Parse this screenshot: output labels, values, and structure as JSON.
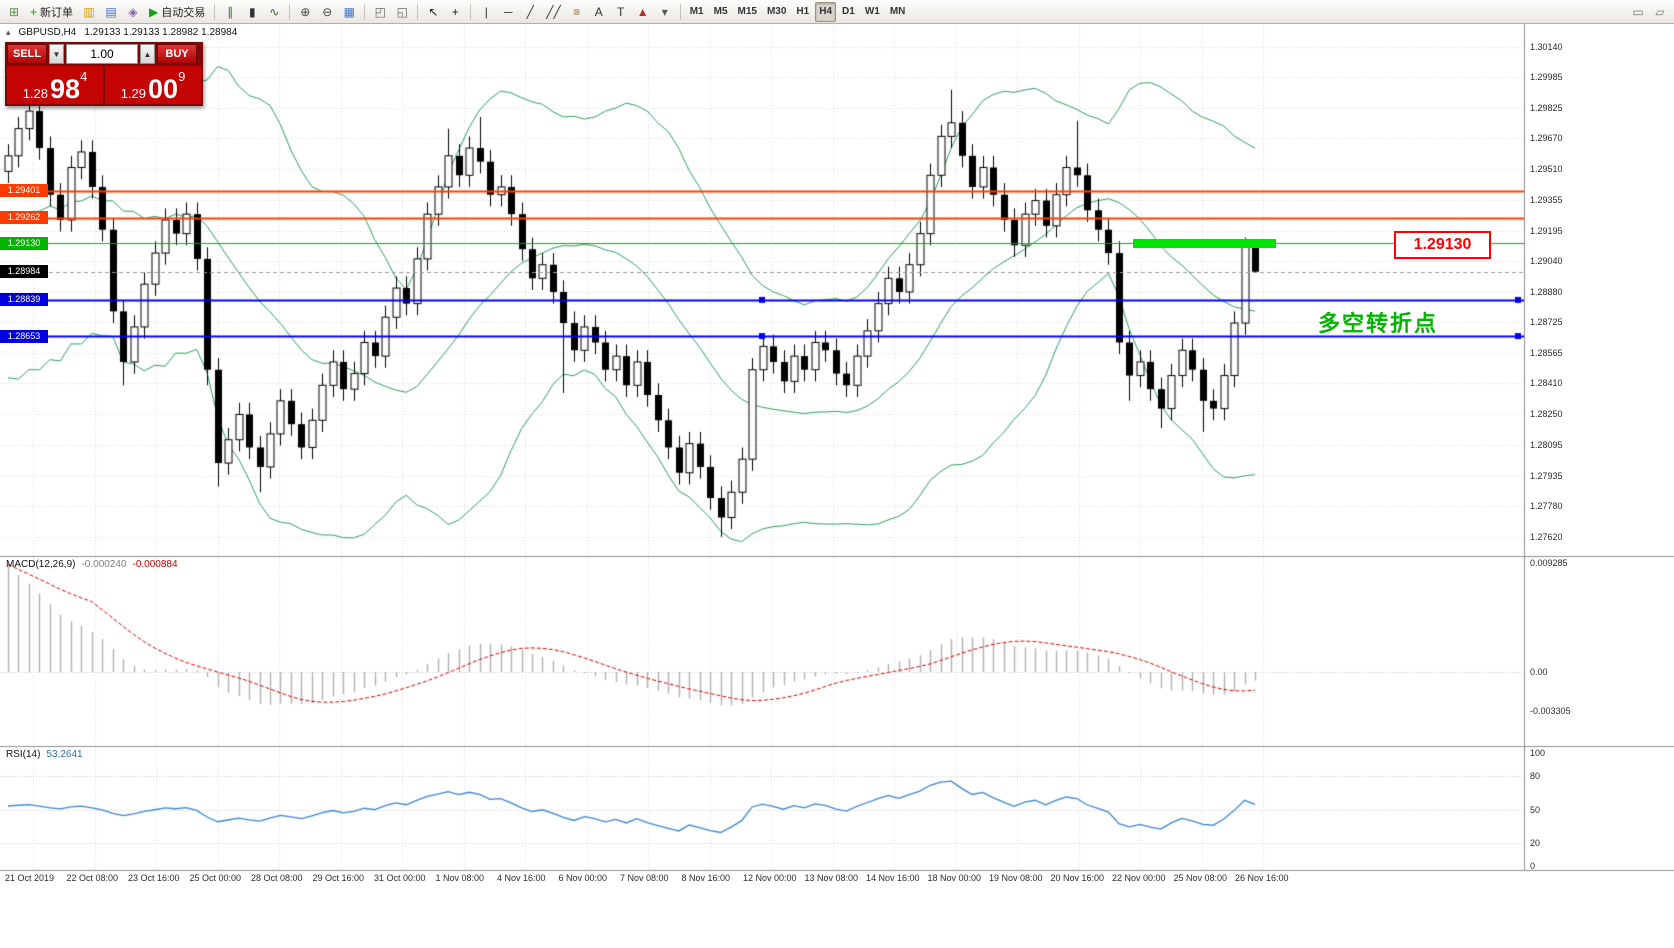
{
  "toolbar": {
    "items": [
      {
        "type": "btn",
        "name": "new-chart-button",
        "glyph": "⊞",
        "color": "#5a8f46"
      },
      {
        "type": "btn",
        "name": "new-order-button",
        "glyph": "+",
        "color": "#18a018",
        "label": "新订单"
      },
      {
        "type": "btn",
        "name": "market-watch-button",
        "glyph": "▥",
        "color": "#d79b00"
      },
      {
        "type": "btn",
        "name": "data-window-button",
        "glyph": "▤",
        "color": "#4472c4"
      },
      {
        "type": "btn",
        "name": "navigator-button",
        "glyph": "◈",
        "color": "#8064a2"
      },
      {
        "type": "btn",
        "name": "auto-trading-button",
        "glyph": "▶",
        "color": "#12a512",
        "label": "自动交易"
      },
      {
        "type": "sep"
      },
      {
        "type": "btn",
        "name": "ohlc-bars-button",
        "glyph": "∥",
        "color": "#2f6f2f"
      },
      {
        "type": "btn",
        "name": "candlestick-button",
        "glyph": "▮",
        "color": "#333333"
      },
      {
        "type": "btn",
        "name": "line-chart-button",
        "glyph": "∿",
        "color": "#2f6f2f"
      },
      {
        "type": "sep"
      },
      {
        "type": "btn",
        "name": "zoom-in-button",
        "glyph": "⊕",
        "color": "#444444"
      },
      {
        "type": "btn",
        "name": "zoom-out-button",
        "glyph": "⊖",
        "color": "#444444"
      },
      {
        "type": "btn",
        "name": "auto-scroll-button",
        "glyph": "▦",
        "color": "#4472c4"
      },
      {
        "type": "sep"
      },
      {
        "type": "btn",
        "name": "tile-windows-button",
        "glyph": "◰",
        "color": "#666666"
      },
      {
        "type": "btn",
        "name": "cascade-windows-button",
        "glyph": "◱",
        "color": "#666666"
      },
      {
        "type": "sep"
      },
      {
        "type": "btn",
        "name": "cursor-button",
        "glyph": "↖",
        "color": "#222222"
      },
      {
        "type": "btn",
        "name": "crosshair-button",
        "glyph": "+",
        "color": "#222222"
      },
      {
        "type": "sep"
      },
      {
        "type": "btn",
        "name": "vertical-line-button",
        "glyph": "|",
        "color": "#333333"
      },
      {
        "type": "btn",
        "name": "horizontal-line-button",
        "glyph": "─",
        "color": "#333333"
      },
      {
        "type": "btn",
        "name": "trendline-button",
        "glyph": "╱",
        "color": "#333333"
      },
      {
        "type": "btn",
        "name": "channel-button",
        "glyph": "╱╱",
        "color": "#333333"
      },
      {
        "type": "btn",
        "name": "fibonacci-button",
        "glyph": "≡",
        "color": "#8a6d3b"
      },
      {
        "type": "btn",
        "name": "text-button",
        "glyph": "A",
        "color": "#333333"
      },
      {
        "type": "btn",
        "name": "text-label-button",
        "glyph": "T",
        "color": "#333333"
      },
      {
        "type": "btn",
        "name": "shapes-button",
        "glyph": "▲",
        "color": "#aa3333"
      },
      {
        "type": "btn",
        "name": "shapes-dropdown-button",
        "glyph": "▾",
        "color": "#555555"
      },
      {
        "type": "sep"
      },
      {
        "type": "btn",
        "tf": true,
        "name": "timeframe-m1-button",
        "label": "M1"
      },
      {
        "type": "btn",
        "tf": true,
        "name": "timeframe-m5-button",
        "label": "M5"
      },
      {
        "type": "btn",
        "tf": true,
        "name": "timeframe-m15-button",
        "label": "M15"
      },
      {
        "type": "btn",
        "tf": true,
        "name": "timeframe-m30-button",
        "label": "M30"
      },
      {
        "type": "btn",
        "tf": true,
        "name": "timeframe-h1-button",
        "label": "H1"
      },
      {
        "type": "btn",
        "tf": true,
        "name": "timeframe-h4-button",
        "label": "H4",
        "active": true
      },
      {
        "type": "btn",
        "tf": true,
        "name": "timeframe-d1-button",
        "label": "D1"
      },
      {
        "type": "btn",
        "tf": true,
        "name": "timeframe-w1-button",
        "label": "W1"
      },
      {
        "type": "btn",
        "tf": true,
        "name": "timeframe-mn-button",
        "label": "MN"
      },
      {
        "type": "gap"
      },
      {
        "type": "btn",
        "name": "window-icon-button-1",
        "glyph": "▭",
        "color": "#777777"
      },
      {
        "type": "btn",
        "name": "window-icon-button-2",
        "glyph": "▱",
        "color": "#777777"
      }
    ]
  },
  "quote_panel": {
    "sell_label": "SELL",
    "buy_label": "BUY",
    "volume": "1.00",
    "sell_price": {
      "prefix": "1.28",
      "big": "98",
      "pip": "4"
    },
    "buy_price": {
      "prefix": "1.29",
      "big": "00",
      "pip": "9"
    }
  },
  "chart_header": {
    "symbol_period": "GBPUSD,H4",
    "ohlc": "1.29133 1.29133 1.28982 1.28984"
  },
  "annotations": {
    "callout": "1.29130",
    "note_cn": "多空转折点"
  },
  "price_scale": {
    "ticks": [
      "1.30140",
      "1.29985",
      "1.29825",
      "1.29670",
      "1.29510",
      "1.29355",
      "1.29195",
      "1.29040",
      "1.28880",
      "1.28725",
      "1.28565",
      "1.28410",
      "1.28250",
      "1.28095",
      "1.27935",
      "1.27780",
      "1.27620"
    ],
    "tags": [
      {
        "price": 1.29401,
        "label": "1.29401",
        "bg": "#ff3c00"
      },
      {
        "price": 1.29262,
        "label": "1.29262",
        "bg": "#ff3c00"
      },
      {
        "price": 1.2913,
        "label": "1.29130",
        "bg": "#00b400"
      },
      {
        "price": 1.28984,
        "label": "1.28984",
        "bg": "#000000"
      },
      {
        "price": 1.28839,
        "label": "1.28839",
        "bg": "#0000dd"
      },
      {
        "price": 1.28653,
        "label": "1.28653",
        "bg": "#0000dd"
      }
    ]
  },
  "time_axis": {
    "labels": [
      "21 Oct 2019",
      "22 Oct 08:00",
      "23 Oct 16:00",
      "25 Oct 00:00",
      "28 Oct 08:00",
      "29 Oct 16:00",
      "31 Oct 00:00",
      "1 Nov 08:00",
      "4 Nov 16:00",
      "6 Nov 00:00",
      "7 Nov 08:00",
      "8 Nov 16:00",
      "12 Nov 00:00",
      "13 Nov 08:00",
      "14 Nov 16:00",
      "18 Nov 00:00",
      "19 Nov 08:00",
      "20 Nov 16:00",
      "22 Nov 00:00",
      "25 Nov 08:00",
      "26 Nov 16:00"
    ]
  },
  "macd_panel": {
    "title": "MACD(12,26,9)",
    "main_value": "-0.000240",
    "signal_value": "-0.000884",
    "scale": [
      {
        "v": 0.009285,
        "label": "0.009285"
      },
      {
        "v": 0,
        "label": "0.00"
      },
      {
        "v": -0.003305,
        "label": "-0.003305"
      }
    ]
  },
  "rsi_panel": {
    "title": "RSI(14)",
    "value": "53.2641",
    "levels": [
      80,
      50,
      20
    ],
    "scale": [
      {
        "v": 100,
        "label": "100"
      },
      {
        "v": 80,
        "label": "80"
      },
      {
        "v": 50,
        "label": "50"
      },
      {
        "v": 20,
        "label": "20"
      },
      {
        "v": 0,
        "label": "0"
      }
    ]
  },
  "chart_data": {
    "type": "candlestick",
    "symbol": "GBPUSD",
    "period": "H4",
    "axis": {
      "p_top": 1.30258,
      "p_bottom": 1.27522,
      "macd_top": 0.009798,
      "macd_bottom": -0.006305,
      "rsi_top": 105.3,
      "rsi_bottom": -3.5
    },
    "bollinger": {
      "period": 20,
      "deviation": 2,
      "color": "#2e9e5b"
    },
    "current_price": 1.28984,
    "hlines": [
      {
        "price": 1.29401,
        "color": "#ff3c00",
        "width": 2
      },
      {
        "price": 1.29262,
        "color": "#ff3c00",
        "width": 2
      },
      {
        "price": 1.2913,
        "color": "#00b400",
        "width": 1
      },
      {
        "price": 1.28839,
        "color": "#0000ee",
        "width": 2,
        "selected": true
      },
      {
        "price": 1.28653,
        "color": "#0000ee",
        "width": 2,
        "selected": true
      }
    ],
    "green_zone": {
      "price": 1.2913,
      "label": "1.29130"
    },
    "warmup_closes": [
      1.288,
      1.296,
      1.2875,
      1.2955,
      1.2885,
      1.2965,
      1.287,
      1.295,
      1.289,
      1.297,
      1.288,
      1.2955,
      1.2875,
      1.2965,
      1.2885,
      1.295,
      1.287,
      1.296,
      1.289,
      1.2958
    ],
    "candles": [
      [
        1.295,
        1.2964,
        1.2944,
        1.2958
      ],
      [
        1.2958,
        1.2978,
        1.2952,
        1.2972
      ],
      [
        1.2972,
        1.2987,
        1.2966,
        1.2981
      ],
      [
        1.2981,
        1.2987,
        1.2956,
        1.2962
      ],
      [
        1.2962,
        1.2968,
        1.2932,
        1.2938
      ],
      [
        1.2938,
        1.2944,
        1.2919,
        1.2925
      ],
      [
        1.2925,
        1.2958,
        1.2919,
        1.2952
      ],
      [
        1.2952,
        1.2966,
        1.2946,
        1.296
      ],
      [
        1.296,
        1.2966,
        1.2936,
        1.2942
      ],
      [
        1.2942,
        1.2948,
        1.2914,
        1.292
      ],
      [
        1.292,
        1.2926,
        1.2872,
        1.2878
      ],
      [
        1.2878,
        1.2884,
        1.284,
        1.2852
      ],
      [
        1.2852,
        1.2876,
        1.2846,
        1.287
      ],
      [
        1.287,
        1.2898,
        1.2864,
        1.2892
      ],
      [
        1.2892,
        1.2914,
        1.2886,
        1.2908
      ],
      [
        1.2908,
        1.2931,
        1.2902,
        1.2925
      ],
      [
        1.2925,
        1.2931,
        1.2912,
        1.2918
      ],
      [
        1.2918,
        1.2934,
        1.2912,
        1.2928
      ],
      [
        1.2928,
        1.2934,
        1.2899,
        1.2905
      ],
      [
        1.2905,
        1.2911,
        1.284,
        1.2848
      ],
      [
        1.2848,
        1.2854,
        1.2788,
        1.28
      ],
      [
        1.28,
        1.2818,
        1.2794,
        1.2812
      ],
      [
        1.2812,
        1.2831,
        1.2806,
        1.2825
      ],
      [
        1.2825,
        1.2831,
        1.2802,
        1.2808
      ],
      [
        1.2808,
        1.2814,
        1.2785,
        1.2798
      ],
      [
        1.2798,
        1.2821,
        1.2792,
        1.2815
      ],
      [
        1.2815,
        1.2838,
        1.2809,
        1.2832
      ],
      [
        1.2832,
        1.2838,
        1.2814,
        1.282
      ],
      [
        1.282,
        1.2826,
        1.2802,
        1.2808
      ],
      [
        1.2808,
        1.2828,
        1.2802,
        1.2822
      ],
      [
        1.2822,
        1.2846,
        1.2816,
        1.284
      ],
      [
        1.284,
        1.2858,
        1.2834,
        1.2852
      ],
      [
        1.2852,
        1.2858,
        1.2832,
        1.2838
      ],
      [
        1.2838,
        1.2852,
        1.2832,
        1.2846
      ],
      [
        1.2846,
        1.2868,
        1.284,
        1.2862
      ],
      [
        1.2862,
        1.2868,
        1.2849,
        1.2855
      ],
      [
        1.2855,
        1.2881,
        1.2849,
        1.2875
      ],
      [
        1.2875,
        1.2896,
        1.2869,
        1.289
      ],
      [
        1.289,
        1.2896,
        1.2876,
        1.2882
      ],
      [
        1.2882,
        1.2911,
        1.2876,
        1.2905
      ],
      [
        1.2905,
        1.2934,
        1.2899,
        1.2928
      ],
      [
        1.2928,
        1.2948,
        1.2922,
        1.2942
      ],
      [
        1.2942,
        1.2972,
        1.2936,
        1.2958
      ],
      [
        1.2958,
        1.2964,
        1.2942,
        1.2948
      ],
      [
        1.2948,
        1.2968,
        1.2942,
        1.2962
      ],
      [
        1.2962,
        1.2978,
        1.2949,
        1.2955
      ],
      [
        1.2955,
        1.2961,
        1.2932,
        1.2938
      ],
      [
        1.2938,
        1.2948,
        1.2932,
        1.2942
      ],
      [
        1.2942,
        1.2948,
        1.2922,
        1.2928
      ],
      [
        1.2928,
        1.2934,
        1.2904,
        1.291
      ],
      [
        1.291,
        1.2916,
        1.2889,
        1.2895
      ],
      [
        1.2895,
        1.2908,
        1.2889,
        1.2902
      ],
      [
        1.2902,
        1.2908,
        1.2882,
        1.2888
      ],
      [
        1.2888,
        1.2894,
        1.2836,
        1.2872
      ],
      [
        1.2872,
        1.2878,
        1.2852,
        1.2858
      ],
      [
        1.2858,
        1.2876,
        1.2852,
        1.287
      ],
      [
        1.287,
        1.2876,
        1.2856,
        1.2862
      ],
      [
        1.2862,
        1.2868,
        1.2842,
        1.2848
      ],
      [
        1.2848,
        1.2861,
        1.2842,
        1.2855
      ],
      [
        1.2855,
        1.2861,
        1.2834,
        1.284
      ],
      [
        1.284,
        1.2858,
        1.2834,
        1.2852
      ],
      [
        1.2852,
        1.2858,
        1.2829,
        1.2835
      ],
      [
        1.2835,
        1.2841,
        1.2816,
        1.2822
      ],
      [
        1.2822,
        1.2828,
        1.2802,
        1.2808
      ],
      [
        1.2808,
        1.2814,
        1.2789,
        1.2795
      ],
      [
        1.2795,
        1.2816,
        1.2789,
        1.281
      ],
      [
        1.281,
        1.2816,
        1.2792,
        1.2798
      ],
      [
        1.2798,
        1.2804,
        1.2776,
        1.2782
      ],
      [
        1.2782,
        1.2788,
        1.2762,
        1.2772
      ],
      [
        1.2772,
        1.2791,
        1.2766,
        1.2785
      ],
      [
        1.2785,
        1.2808,
        1.2779,
        1.2802
      ],
      [
        1.2802,
        1.2854,
        1.2796,
        1.2848
      ],
      [
        1.2848,
        1.2866,
        1.2842,
        1.286
      ],
      [
        1.286,
        1.2866,
        1.2846,
        1.2852
      ],
      [
        1.2852,
        1.2858,
        1.2836,
        1.2842
      ],
      [
        1.2842,
        1.2861,
        1.2836,
        1.2855
      ],
      [
        1.2855,
        1.2861,
        1.2842,
        1.2848
      ],
      [
        1.2848,
        1.2868,
        1.2842,
        1.2862
      ],
      [
        1.2862,
        1.2868,
        1.2852,
        1.2858
      ],
      [
        1.2858,
        1.2864,
        1.284,
        1.2846
      ],
      [
        1.2846,
        1.2852,
        1.2834,
        1.284
      ],
      [
        1.284,
        1.2861,
        1.2834,
        1.2855
      ],
      [
        1.2855,
        1.2874,
        1.2849,
        1.2868
      ],
      [
        1.2868,
        1.2888,
        1.2862,
        1.2882
      ],
      [
        1.2882,
        1.2901,
        1.2876,
        1.2895
      ],
      [
        1.2895,
        1.2901,
        1.2882,
        1.2888
      ],
      [
        1.2888,
        1.2908,
        1.2882,
        1.2902
      ],
      [
        1.2902,
        1.2924,
        1.2896,
        1.2918
      ],
      [
        1.2918,
        1.2954,
        1.2912,
        1.2948
      ],
      [
        1.2948,
        1.2974,
        1.2942,
        1.2968
      ],
      [
        1.2968,
        1.2992,
        1.2962,
        1.2975
      ],
      [
        1.2975,
        1.2981,
        1.2952,
        1.2958
      ],
      [
        1.2958,
        1.2964,
        1.2936,
        1.2942
      ],
      [
        1.2942,
        1.2958,
        1.2936,
        1.2952
      ],
      [
        1.2952,
        1.2958,
        1.2932,
        1.2938
      ],
      [
        1.2938,
        1.2944,
        1.2919,
        1.2925
      ],
      [
        1.2925,
        1.2931,
        1.2906,
        1.2912
      ],
      [
        1.2912,
        1.2934,
        1.2906,
        1.2928
      ],
      [
        1.2928,
        1.2941,
        1.2922,
        1.2935
      ],
      [
        1.2935,
        1.2941,
        1.2916,
        1.2922
      ],
      [
        1.2922,
        1.2944,
        1.2916,
        1.2938
      ],
      [
        1.2938,
        1.2958,
        1.2932,
        1.2952
      ],
      [
        1.2952,
        1.2976,
        1.2942,
        1.2948
      ],
      [
        1.2948,
        1.2954,
        1.2924,
        1.293
      ],
      [
        1.293,
        1.2936,
        1.2914,
        1.292
      ],
      [
        1.292,
        1.2926,
        1.2902,
        1.2908
      ],
      [
        1.2908,
        1.2914,
        1.2856,
        1.2862
      ],
      [
        1.2862,
        1.2868,
        1.2832,
        1.2845
      ],
      [
        1.2845,
        1.2858,
        1.2839,
        1.2852
      ],
      [
        1.2852,
        1.2858,
        1.2832,
        1.2838
      ],
      [
        1.2838,
        1.2844,
        1.2818,
        1.2828
      ],
      [
        1.2828,
        1.2851,
        1.2822,
        1.2845
      ],
      [
        1.2845,
        1.2864,
        1.2839,
        1.2858
      ],
      [
        1.2858,
        1.2864,
        1.2842,
        1.2848
      ],
      [
        1.2848,
        1.2854,
        1.2816,
        1.2832
      ],
      [
        1.2832,
        1.2838,
        1.2822,
        1.2828
      ],
      [
        1.2828,
        1.2851,
        1.2822,
        1.2845
      ],
      [
        1.2845,
        1.2878,
        1.2839,
        1.2872
      ],
      [
        1.2872,
        1.2916,
        1.2866,
        1.2913
      ],
      [
        1.29133,
        1.29133,
        1.28982,
        1.28984
      ]
    ]
  }
}
